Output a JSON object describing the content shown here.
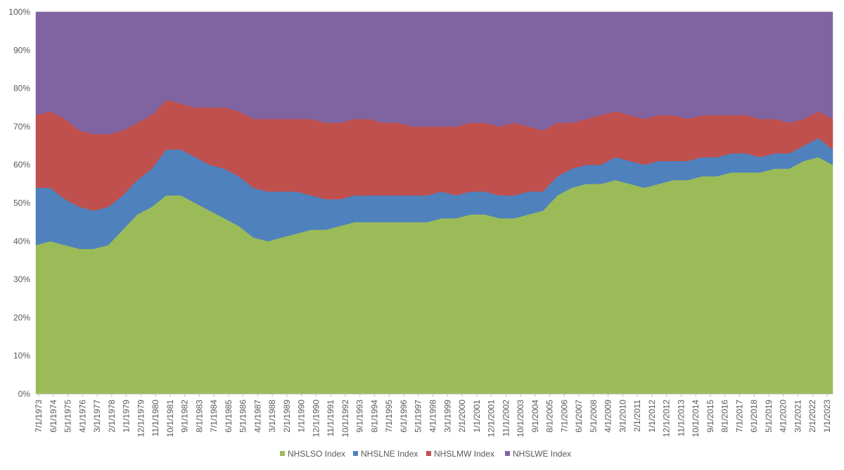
{
  "chart_data": {
    "type": "area",
    "stacking": "percent",
    "title": "",
    "xlabel": "",
    "ylabel": "",
    "ylim": [
      0,
      100
    ],
    "y_ticks": [
      "0%",
      "10%",
      "20%",
      "30%",
      "40%",
      "50%",
      "60%",
      "70%",
      "80%",
      "90%",
      "100%"
    ],
    "x_tick_labels": [
      "7/1/1973",
      "6/1/1974",
      "5/1/1975",
      "4/1/1976",
      "3/1/1977",
      "2/1/1978",
      "1/1/1979",
      "12/1/1979",
      "11/1/1980",
      "10/1/1981",
      "9/1/1982",
      "8/1/1983",
      "7/1/1984",
      "6/1/1985",
      "5/1/1986",
      "4/1/1987",
      "3/1/1988",
      "2/1/1989",
      "1/1/1990",
      "12/1/1990",
      "11/1/1991",
      "10/1/1992",
      "9/1/1993",
      "8/1/1994",
      "7/1/1995",
      "6/1/1996",
      "5/1/1997",
      "4/1/1998",
      "3/1/1999",
      "2/1/2000",
      "1/1/2001",
      "12/1/2001",
      "11/1/2002",
      "10/1/2003",
      "9/1/2004",
      "8/1/2005",
      "7/1/2006",
      "6/1/2007",
      "5/1/2008",
      "4/1/2009",
      "3/1/2010",
      "2/1/2011",
      "1/1/2012",
      "12/1/2012",
      "11/1/2013",
      "10/1/2014",
      "9/1/2015",
      "8/1/2016",
      "7/1/2017",
      "6/1/2018",
      "5/1/2019",
      "4/1/2020",
      "3/1/2021",
      "2/1/2022",
      "1/1/2023"
    ],
    "legend_position": "bottom",
    "series": [
      {
        "name": "NHSLSO Index",
        "color": "#9bbb59",
        "values": [
          39,
          40,
          39,
          38,
          38,
          39,
          43,
          47,
          49,
          52,
          52,
          50,
          48,
          46,
          44,
          41,
          40,
          41,
          42,
          43,
          43,
          44,
          45,
          45,
          45,
          45,
          45,
          45,
          46,
          46,
          47,
          47,
          46,
          46,
          47,
          48,
          52,
          54,
          55,
          55,
          56,
          55,
          54,
          55,
          56,
          56,
          57,
          57,
          58,
          58,
          58,
          59,
          59,
          61,
          62,
          60
        ]
      },
      {
        "name": "NHSLNE Index",
        "color": "#4f81bd",
        "values": [
          15,
          14,
          12,
          11,
          10,
          10,
          9,
          9,
          10,
          12,
          12,
          12,
          12,
          13,
          13,
          13,
          13,
          12,
          11,
          9,
          8,
          7,
          7,
          7,
          7,
          7,
          7,
          7,
          7,
          6,
          6,
          6,
          6,
          6,
          6,
          5,
          5,
          5,
          5,
          5,
          6,
          6,
          6,
          6,
          5,
          5,
          5,
          5,
          5,
          5,
          4,
          4,
          4,
          4,
          5,
          4
        ]
      },
      {
        "name": "NHSLMW Index",
        "color": "#c0504d",
        "values": [
          19,
          20,
          21,
          20,
          20,
          19,
          17,
          15,
          14,
          13,
          12,
          13,
          15,
          16,
          17,
          18,
          19,
          19,
          19,
          20,
          20,
          20,
          20,
          20,
          19,
          19,
          18,
          18,
          17,
          18,
          18,
          18,
          18,
          19,
          17,
          16,
          14,
          12,
          12,
          13,
          12,
          12,
          12,
          12,
          12,
          11,
          11,
          11,
          10,
          10,
          10,
          9,
          8,
          7,
          7,
          8
        ]
      },
      {
        "name": "NHSLWE Index",
        "color": "#8064a2",
        "values": [
          27,
          26,
          28,
          31,
          32,
          32,
          31,
          29,
          27,
          23,
          24,
          25,
          25,
          25,
          26,
          28,
          28,
          28,
          28,
          28,
          29,
          29,
          28,
          28,
          29,
          29,
          30,
          30,
          30,
          30,
          29,
          29,
          30,
          29,
          30,
          31,
          29,
          29,
          28,
          27,
          26,
          27,
          28,
          27,
          27,
          28,
          27,
          27,
          27,
          27,
          28,
          28,
          29,
          28,
          26,
          28
        ]
      }
    ]
  }
}
